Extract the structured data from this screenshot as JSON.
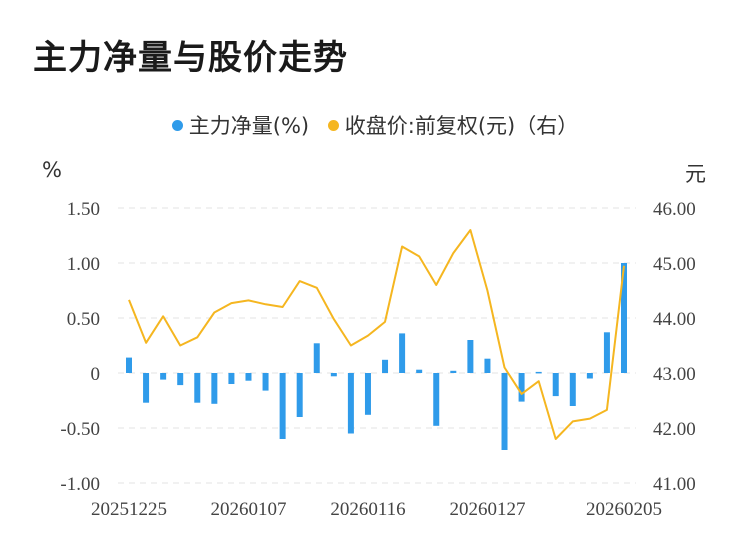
{
  "title": "主力净量与股价走势",
  "legend": {
    "net": "主力净量(%)",
    "price": "收盘价:前复权(元)（右）"
  },
  "units": {
    "left": "%",
    "right": "元"
  },
  "colors": {
    "bar": "#2f9bea",
    "line": "#f5b620",
    "grid": "#e3e3e3"
  },
  "chart_data": {
    "type": "bar+line",
    "x_tick_labels": [
      "20251225",
      "20260107",
      "20260116",
      "20260127",
      "20260205"
    ],
    "y_left": {
      "ticks": [
        "1.50",
        "1.00",
        "0.50",
        "0",
        "-0.50",
        "-1.00"
      ],
      "range": [
        -1.0,
        1.5
      ]
    },
    "y_right": {
      "ticks": [
        "46.00",
        "45.00",
        "44.00",
        "43.00",
        "42.00",
        "41.00"
      ],
      "range": [
        41.0,
        46.0
      ]
    },
    "series": [
      {
        "name": "主力净量(%)",
        "type": "bar",
        "values": [
          0.14,
          -0.27,
          -0.06,
          -0.11,
          -0.27,
          -0.28,
          -0.1,
          -0.07,
          -0.16,
          -0.6,
          -0.4,
          0.27,
          -0.03,
          -0.55,
          -0.38,
          0.12,
          0.36,
          0.03,
          -0.48,
          0.02,
          0.3,
          0.13,
          -0.7,
          -0.26,
          0.01,
          -0.21,
          -0.3,
          -0.05,
          0.37,
          1.0
        ]
      },
      {
        "name": "收盘价:前复权(元)（右）",
        "type": "line",
        "values": [
          44.33,
          43.55,
          44.03,
          43.5,
          43.65,
          44.1,
          44.27,
          44.32,
          44.25,
          44.2,
          44.67,
          44.55,
          43.98,
          43.5,
          43.68,
          43.93,
          45.3,
          45.12,
          44.6,
          45.18,
          45.6,
          44.5,
          43.1,
          42.62,
          42.85,
          41.8,
          42.12,
          42.17,
          42.33,
          44.95
        ]
      }
    ]
  }
}
